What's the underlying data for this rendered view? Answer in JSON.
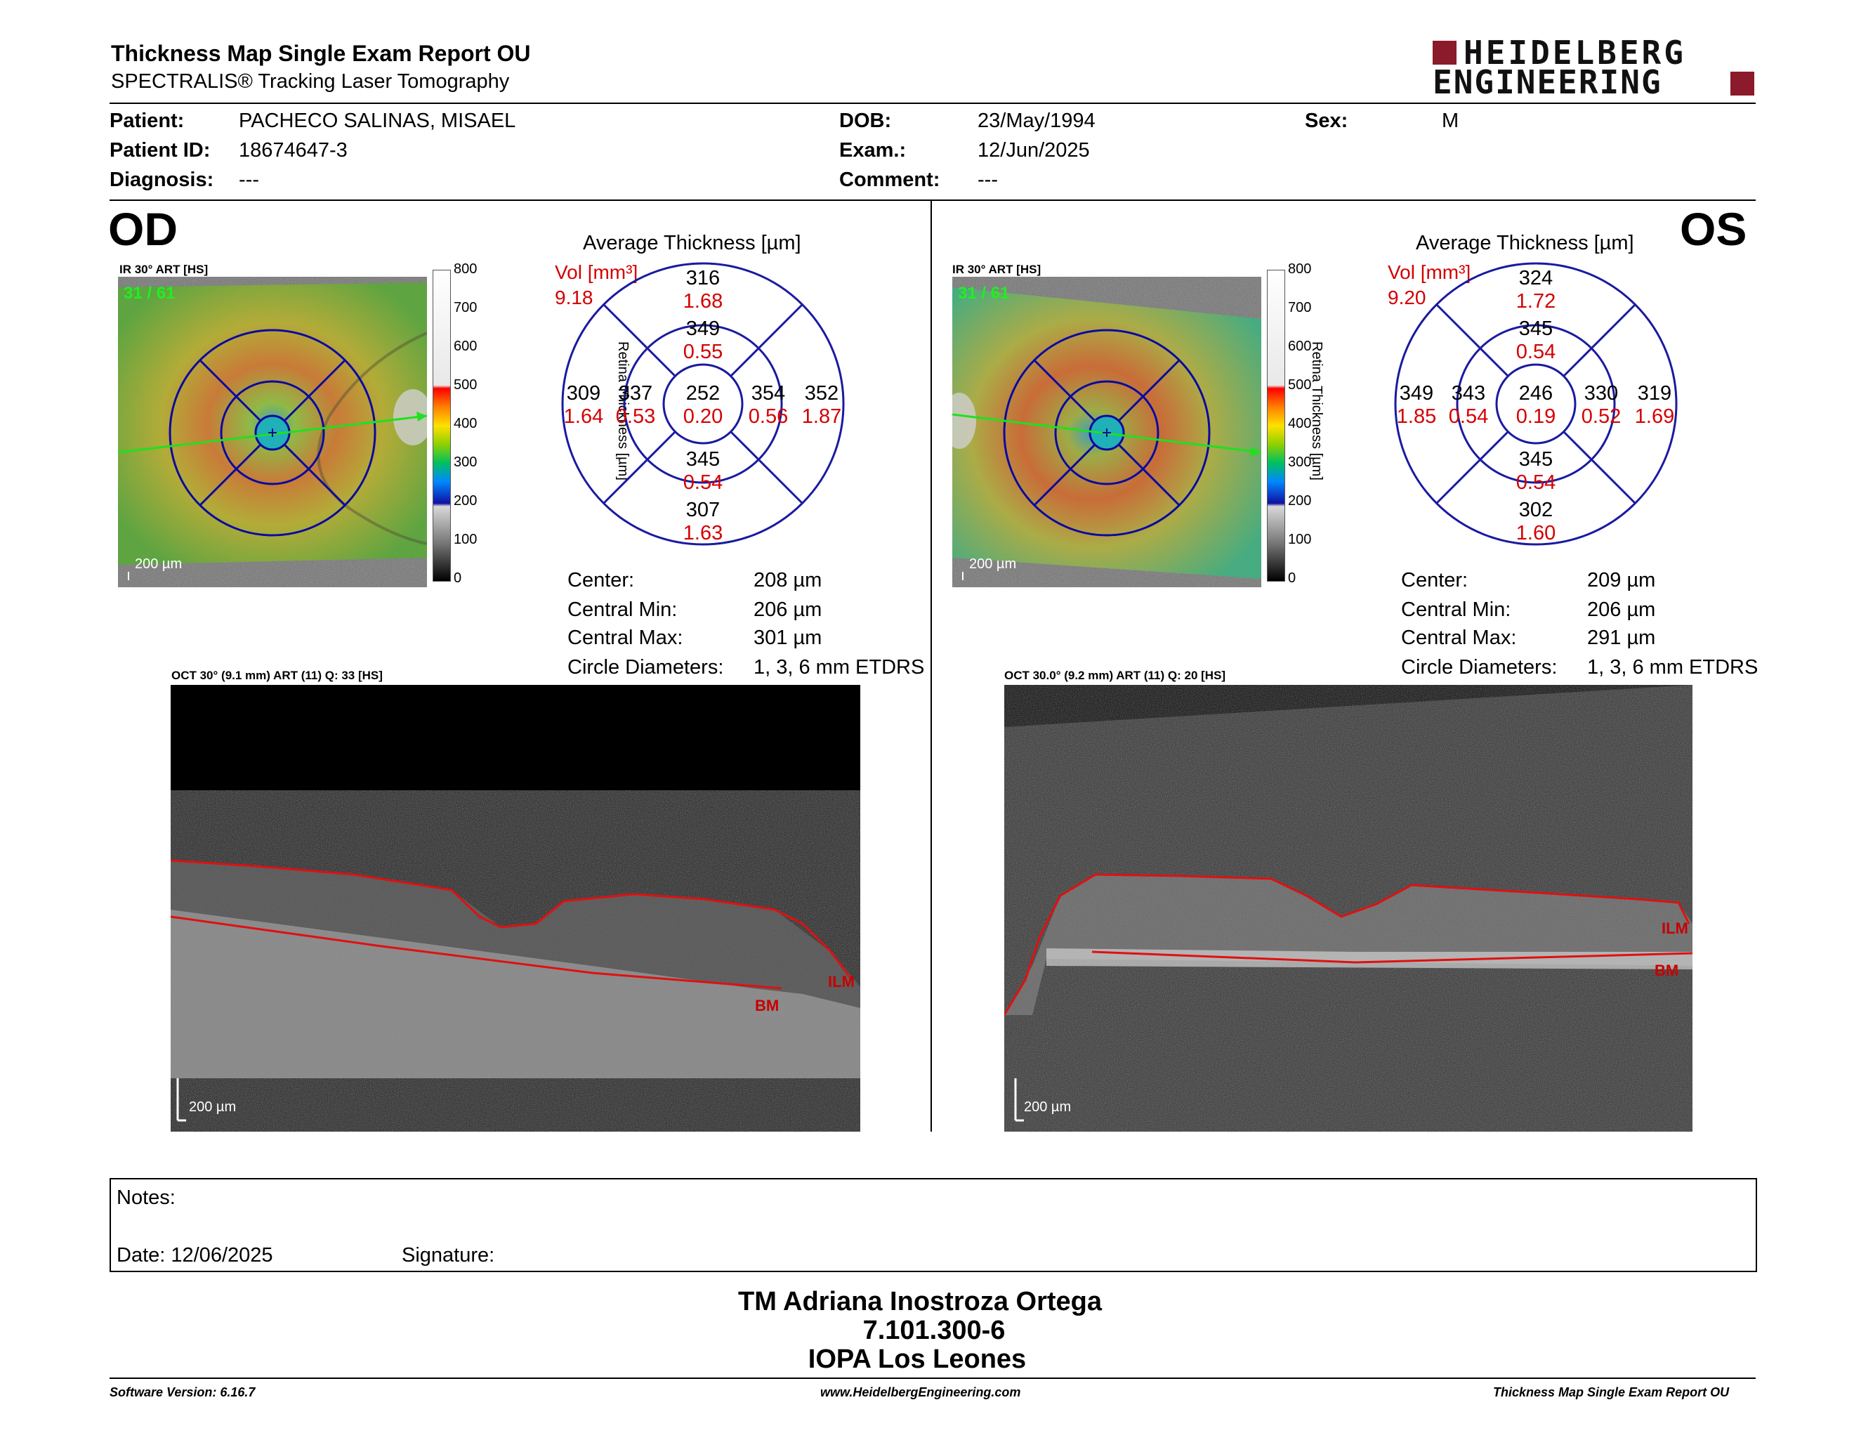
{
  "header": {
    "title": "Thickness Map Single Exam Report OU",
    "subtitle": "SPECTRALIS® Tracking Laser Tomography",
    "logo_line1": "HEIDELBERG",
    "logo_line2": "ENGINEERING",
    "logo_color": "#8b1a2b"
  },
  "patient": {
    "patient_label": "Patient:",
    "patient_value": "PACHECO SALINAS, MISAEL",
    "id_label": "Patient ID:",
    "id_value": "18674647-3",
    "diagnosis_label": "Diagnosis:",
    "diagnosis_value": "---",
    "dob_label": "DOB:",
    "dob_value": "23/May/1994",
    "exam_label": "Exam.:",
    "exam_value": "12/Jun/2025",
    "comment_label": "Comment:",
    "comment_value": "---",
    "sex_label": "Sex:",
    "sex_value": "M"
  },
  "colorbar": {
    "ticks": [
      "800",
      "700",
      "600",
      "500",
      "400",
      "300",
      "200",
      "100",
      "0"
    ],
    "axis_label": "Retina  Thickness [µm]"
  },
  "od": {
    "eye": "OD",
    "ir_label": "IR 30° ART [HS]",
    "frame": "31 / 61",
    "scale": "200 µm",
    "avg_title": "Average Thickness [µm]",
    "vol_label": "Vol [mm³]",
    "vol_total": "9.18",
    "sectors": {
      "center": {
        "t": "252",
        "v": "0.20"
      },
      "inner_s": {
        "t": "349",
        "v": "0.55"
      },
      "inner_i": {
        "t": "345",
        "v": "0.54"
      },
      "inner_t": {
        "t": "337",
        "v": "0.53"
      },
      "inner_n": {
        "t": "354",
        "v": "0.56"
      },
      "outer_s": {
        "t": "316",
        "v": "1.68"
      },
      "outer_i": {
        "t": "307",
        "v": "1.63"
      },
      "outer_t": {
        "t": "309",
        "v": "1.64"
      },
      "outer_n": {
        "t": "352",
        "v": "1.87"
      }
    },
    "stats": {
      "center_label": "Center:",
      "center_value": "208 µm",
      "min_label": "Central Min:",
      "min_value": "206 µm",
      "max_label": "Central Max:",
      "max_value": "301 µm",
      "circ_label": "Circle Diameters:",
      "circ_value": "1, 3, 6 mm ETDRS"
    },
    "oct_label": "OCT 30° (9.1 mm) ART (11) Q: 33 [HS]",
    "oct_scale": "200 µm",
    "ilm": "ILM",
    "bm": "BM"
  },
  "os": {
    "eye": "OS",
    "ir_label": "IR 30° ART [HS]",
    "frame": "31 / 61",
    "scale": "200 µm",
    "avg_title": "Average Thickness [µm]",
    "vol_label": "Vol [mm³]",
    "vol_total": "9.20",
    "sectors": {
      "center": {
        "t": "246",
        "v": "0.19"
      },
      "inner_s": {
        "t": "345",
        "v": "0.54"
      },
      "inner_i": {
        "t": "345",
        "v": "0.54"
      },
      "inner_t": {
        "t": "343",
        "v": "0.54"
      },
      "inner_n": {
        "t": "330",
        "v": "0.52"
      },
      "outer_s": {
        "t": "324",
        "v": "1.72"
      },
      "outer_i": {
        "t": "302",
        "v": "1.60"
      },
      "outer_t": {
        "t": "349",
        "v": "1.85"
      },
      "outer_n": {
        "t": "319",
        "v": "1.69"
      }
    },
    "stats": {
      "center_label": "Center:",
      "center_value": "209 µm",
      "min_label": "Central Min:",
      "min_value": "206 µm",
      "max_label": "Central Max:",
      "max_value": "291 µm",
      "circ_label": "Circle Diameters:",
      "circ_value": "1, 3, 6 mm ETDRS"
    },
    "oct_label": "OCT 30.0° (9.2 mm) ART (11) Q: 20 [HS]",
    "oct_scale": "200 µm",
    "ilm": "ILM",
    "bm": "BM"
  },
  "notes": {
    "notes_label": "Notes:",
    "date_label": "Date: 12/06/2025",
    "signature_label": "Signature:"
  },
  "signature": {
    "line1": "TM Adriana Inostroza Ortega",
    "line2": "7.101.300-6",
    "line3": "IOPA Los Leones"
  },
  "footer": {
    "software": "Software Version: 6.16.7",
    "website": "www.HeidelbergEngineering.com",
    "report": "Thickness Map Single Exam Report OU"
  }
}
